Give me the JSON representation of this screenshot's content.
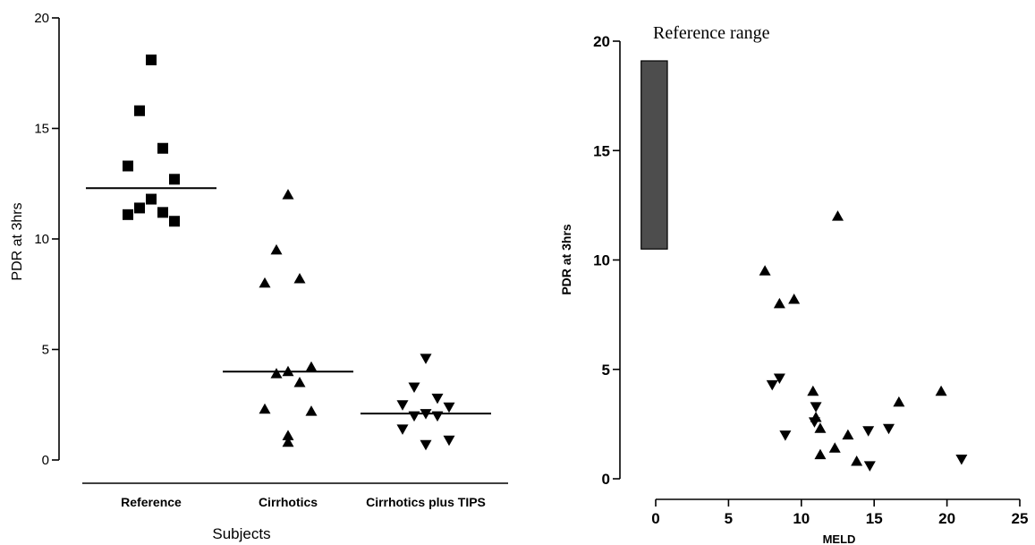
{
  "chart_data": [
    {
      "type": "scatter",
      "title": "",
      "xlabel": "Subjects",
      "ylabel": "PDR at 3hrs",
      "ylim": [
        0,
        20
      ],
      "yticks": [
        "0",
        "5",
        "10",
        "15",
        "20"
      ],
      "categories": [
        "Reference",
        "Cirrhotics",
        "Cirrhotics plus TIPS"
      ],
      "grid": false,
      "series": [
        {
          "category": "Reference",
          "marker": "square",
          "values": [
            18.1,
            15.8,
            14.1,
            13.3,
            12.7,
            11.8,
            11.2,
            11.4,
            11.1,
            10.8
          ],
          "median": 12.3
        },
        {
          "category": "Cirrhotics",
          "marker": "triangle-up",
          "values": [
            12.0,
            9.5,
            8.2,
            8.0,
            4.2,
            4.0,
            3.9,
            3.5,
            2.3,
            2.2,
            1.1,
            0.8
          ],
          "median": 4.0
        },
        {
          "category": "Cirrhotics plus TIPS",
          "marker": "triangle-down",
          "values": [
            4.6,
            3.3,
            2.8,
            2.5,
            2.4,
            2.1,
            2.0,
            2.0,
            1.4,
            0.9,
            0.7
          ],
          "median": 2.1
        }
      ]
    },
    {
      "type": "scatter",
      "title": "",
      "xlabel": "MELD",
      "ylabel": "PDR at 3hrs",
      "xlim": [
        -1,
        25
      ],
      "ylim": [
        0,
        20
      ],
      "xticks": [
        "0",
        "5",
        "10",
        "15",
        "20",
        "25"
      ],
      "yticks": [
        "0",
        "5",
        "10",
        "15",
        "20"
      ],
      "grid": false,
      "annotation": "Reference range",
      "reference_range": {
        "x": [
          -1,
          0.8
        ],
        "y": [
          10.5,
          19.1
        ],
        "color": "#4d4d4d"
      },
      "series": [
        {
          "marker": "triangle-up",
          "points": [
            [
              12.5,
              12.0
            ],
            [
              7.5,
              9.5
            ],
            [
              8.5,
              8.0
            ],
            [
              9.5,
              8.2
            ],
            [
              10.8,
              4.0
            ],
            [
              19.6,
              4.0
            ],
            [
              16.7,
              3.5
            ],
            [
              11.0,
              2.8
            ],
            [
              11.3,
              2.3
            ],
            [
              13.2,
              2.0
            ],
            [
              12.3,
              1.4
            ],
            [
              11.3,
              1.1
            ],
            [
              13.8,
              0.8
            ]
          ]
        },
        {
          "marker": "triangle-down",
          "points": [
            [
              8.0,
              4.3
            ],
            [
              8.5,
              4.6
            ],
            [
              11.0,
              3.3
            ],
            [
              10.9,
              2.6
            ],
            [
              8.9,
              2.0
            ],
            [
              14.6,
              2.2
            ],
            [
              16.0,
              2.3
            ],
            [
              14.7,
              0.6
            ],
            [
              21.0,
              0.9
            ]
          ]
        }
      ]
    }
  ]
}
